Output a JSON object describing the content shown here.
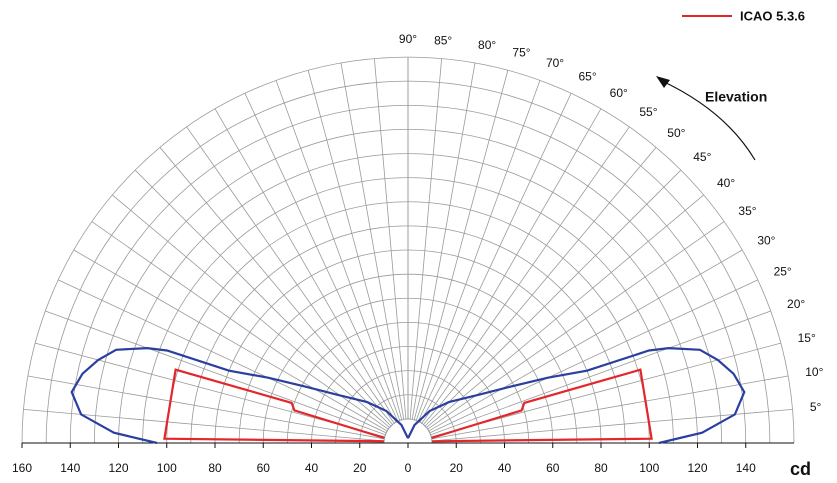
{
  "chart_data": {
    "type": "polar-half",
    "r_label": "cd",
    "annotation": "Elevation",
    "legend": "upper right",
    "rlim": [
      -160,
      160
    ],
    "rticks": [
      {
        "value": -160,
        "label": "160"
      },
      {
        "value": -140,
        "label": "140"
      },
      {
        "value": -120,
        "label": "120"
      },
      {
        "value": -100,
        "label": "100"
      },
      {
        "value": -80,
        "label": "80"
      },
      {
        "value": -60,
        "label": "60"
      },
      {
        "value": -40,
        "label": "40"
      },
      {
        "value": -20,
        "label": "20"
      },
      0,
      20,
      40,
      60,
      80,
      100,
      120,
      140
    ],
    "rings": [
      10,
      20,
      30,
      40,
      50,
      60,
      70,
      80,
      90,
      100,
      110,
      120,
      130,
      140,
      150,
      160
    ],
    "alim": [
      0,
      90
    ],
    "aticks": [
      {
        "value": 5,
        "label": "5°"
      },
      {
        "value": 10,
        "label": "10°"
      },
      {
        "value": 15,
        "label": "15°"
      },
      {
        "value": 20,
        "label": "20°"
      },
      {
        "value": 25,
        "label": "25°"
      },
      {
        "value": 30,
        "label": "30°"
      },
      {
        "value": 35,
        "label": "35°"
      },
      {
        "value": 40,
        "label": "40°"
      },
      {
        "value": 45,
        "label": "45°"
      },
      {
        "value": 50,
        "label": "50°"
      },
      {
        "value": 55,
        "label": "55°"
      },
      {
        "value": 60,
        "label": "60°"
      },
      {
        "value": 65,
        "label": "65°"
      },
      {
        "value": 70,
        "label": "70°"
      },
      {
        "value": 75,
        "label": "75°"
      },
      {
        "value": 80,
        "label": "80°"
      },
      {
        "value": 85,
        "label": "85°"
      },
      {
        "value": 90,
        "label": "90°"
      }
    ],
    "series": [
      {
        "color": "#2b3fa0",
        "x": [
          0,
          2,
          5,
          8.6,
          12,
          15,
          17.7,
          20,
          21,
          22,
          25,
          29,
          34,
          45,
          56,
          70,
          90
        ],
        "values": [
          104,
          122,
          136,
          141,
          138,
          133,
          127,
          115,
          107,
          80,
          64,
          48,
          36,
          24,
          16,
          8,
          2
        ]
      },
      {
        "name": "ICAO 5.3.6",
        "color": "#e3262b",
        "x": [
          4,
          1,
          17.5,
          19,
          16,
          12
        ],
        "values": [
          10,
          101,
          101,
          51,
          49,
          10
        ]
      }
    ]
  }
}
